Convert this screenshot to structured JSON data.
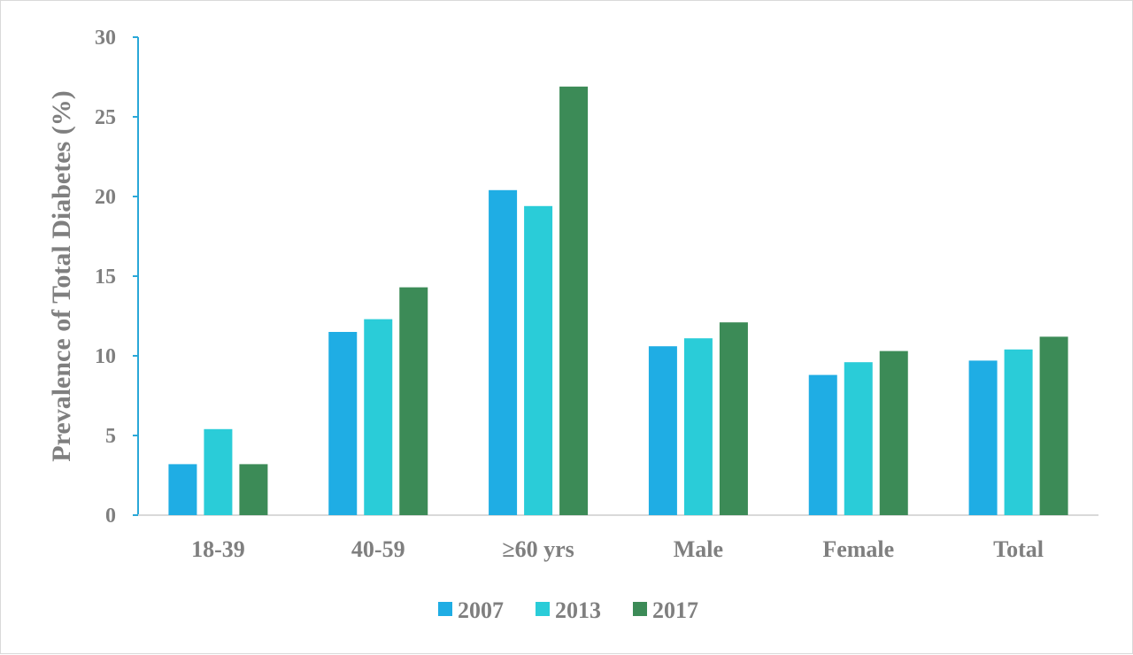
{
  "chart_data": {
    "type": "bar",
    "title": "",
    "xlabel": "",
    "ylabel": "Prevalence of Total Diabetes (%)",
    "ylim": [
      0,
      30
    ],
    "yticks": [
      "0",
      "5",
      "10",
      "15",
      "20",
      "25",
      "30"
    ],
    "categories": [
      "18-39",
      "40-59",
      "≥60 yrs",
      "Male",
      "Female",
      "Total"
    ],
    "series": [
      {
        "name": "2007",
        "color": "#1fade4",
        "values": [
          3.2,
          11.5,
          20.4,
          10.6,
          8.8,
          9.7
        ]
      },
      {
        "name": "2013",
        "color": "#2accd8",
        "values": [
          5.4,
          12.3,
          19.4,
          11.1,
          9.6,
          10.4
        ]
      },
      {
        "name": "2017",
        "color": "#3c8b57",
        "values": [
          3.2,
          14.3,
          26.9,
          12.1,
          10.3,
          11.2
        ]
      }
    ],
    "grid": false,
    "legend_position": "bottom",
    "axis_color": "#2aa8d8",
    "text_color": "#7f7f7f"
  }
}
